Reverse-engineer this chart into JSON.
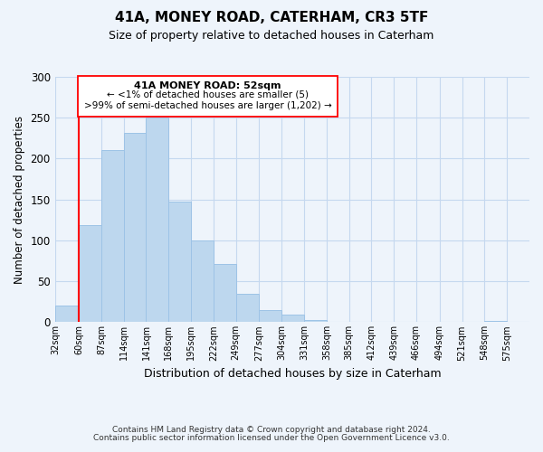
{
  "title": "41A, MONEY ROAD, CATERHAM, CR3 5TF",
  "subtitle": "Size of property relative to detached houses in Caterham",
  "xlabel": "Distribution of detached houses by size in Caterham",
  "ylabel": "Number of detached properties",
  "bar_left_edges": [
    32,
    60,
    87,
    114,
    141,
    168,
    195,
    222,
    249,
    277,
    304,
    331,
    358,
    385,
    412,
    439,
    466,
    494,
    521,
    548
  ],
  "bar_widths": [
    28,
    27,
    27,
    27,
    27,
    27,
    27,
    27,
    28,
    27,
    27,
    27,
    27,
    27,
    27,
    27,
    28,
    27,
    27,
    27
  ],
  "bar_heights": [
    20,
    119,
    210,
    231,
    250,
    148,
    100,
    71,
    35,
    15,
    9,
    3,
    0,
    0,
    0,
    0,
    0,
    0,
    0,
    2
  ],
  "bar_color": "#bdd7ee",
  "bar_edge_color": "#9dc3e6",
  "tick_labels": [
    "32sqm",
    "60sqm",
    "87sqm",
    "114sqm",
    "141sqm",
    "168sqm",
    "195sqm",
    "222sqm",
    "249sqm",
    "277sqm",
    "304sqm",
    "331sqm",
    "358sqm",
    "385sqm",
    "412sqm",
    "439sqm",
    "466sqm",
    "494sqm",
    "521sqm",
    "548sqm",
    "575sqm"
  ],
  "tick_positions": [
    32,
    60,
    87,
    114,
    141,
    168,
    195,
    222,
    249,
    277,
    304,
    331,
    358,
    385,
    412,
    439,
    466,
    494,
    521,
    548,
    575
  ],
  "ylim": [
    0,
    300
  ],
  "xlim": [
    32,
    602
  ],
  "yticks": [
    0,
    50,
    100,
    150,
    200,
    250,
    300
  ],
  "property_line_x": 60,
  "annotation_title": "41A MONEY ROAD: 52sqm",
  "annotation_line1": "← <1% of detached houses are smaller (5)",
  "annotation_line2": ">99% of semi-detached houses are larger (1,202) →",
  "footer1": "Contains HM Land Registry data © Crown copyright and database right 2024.",
  "footer2": "Contains public sector information licensed under the Open Government Licence v3.0.",
  "background_color": "#eef4fb",
  "plot_background": "#eef4fb",
  "grid_color": "#c5d8ef"
}
